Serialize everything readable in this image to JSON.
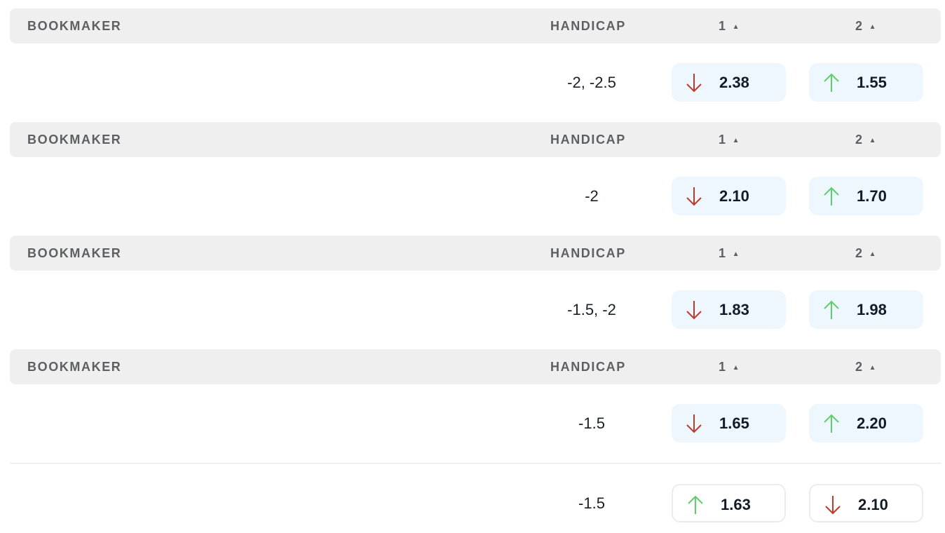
{
  "columns": {
    "bookmaker": "BOOKMAKER",
    "handicap": "HANDICAP",
    "col1": "1",
    "col2": "2",
    "sort_icon": "triangle-up"
  },
  "colors": {
    "down": "#c0392b",
    "up": "#5ccf6a",
    "button_bg": "#eef6fe",
    "header_bg": "#efefef"
  },
  "groups": [
    {
      "handicap": "-2, -2.5",
      "odds1": {
        "value": "2.38",
        "trend": "down"
      },
      "odds2": {
        "value": "1.55",
        "trend": "up"
      }
    },
    {
      "handicap": "-2",
      "odds1": {
        "value": "2.10",
        "trend": "down"
      },
      "odds2": {
        "value": "1.70",
        "trend": "up"
      }
    },
    {
      "handicap": "-1.5, -2",
      "odds1": {
        "value": "1.83",
        "trend": "down"
      },
      "odds2": {
        "value": "1.98",
        "trend": "up"
      }
    },
    {
      "handicap": "-1.5",
      "odds1": {
        "value": "1.65",
        "trend": "down"
      },
      "odds2": {
        "value": "2.20",
        "trend": "up"
      }
    }
  ],
  "extra_row": {
    "handicap": "-1.5",
    "odds1": {
      "value": "1.63",
      "trend": "up"
    },
    "odds2": {
      "value": "2.10",
      "trend": "down"
    }
  }
}
